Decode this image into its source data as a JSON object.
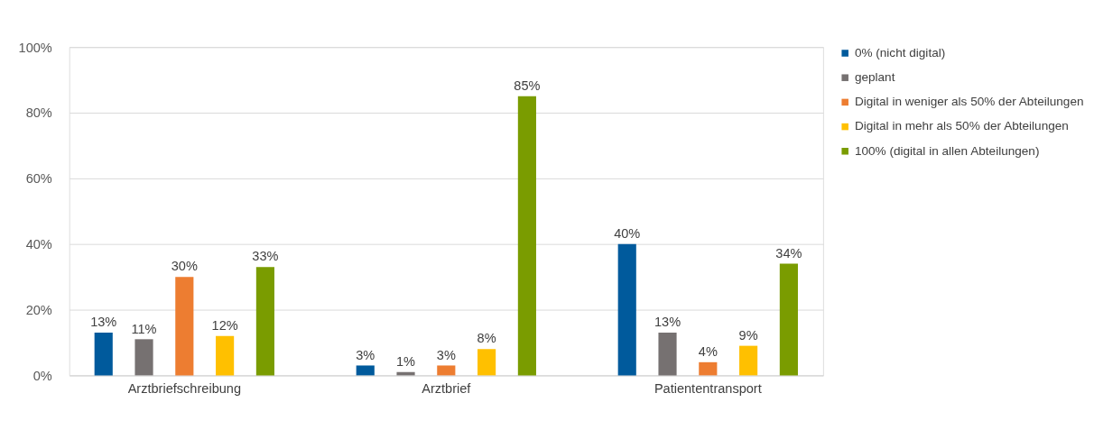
{
  "chart_data": {
    "type": "bar",
    "categories": [
      "Arztbriefschreibung",
      "Arztbrief",
      "Patiententransport"
    ],
    "series": [
      {
        "name": "0% (nicht digital)",
        "color": "#005a9c",
        "values": [
          13,
          3,
          40
        ],
        "value_labels": [
          "13%",
          "3%",
          "40%"
        ]
      },
      {
        "name": "geplant",
        "color": "#767171",
        "values": [
          11,
          1,
          13
        ],
        "value_labels": [
          "11%",
          "1%",
          "13%"
        ]
      },
      {
        "name": "Digital in weniger als 50% der Abteilungen",
        "color": "#ed7d31",
        "values": [
          30,
          3,
          4
        ],
        "value_labels": [
          "30%",
          "3%",
          "4%"
        ]
      },
      {
        "name": "Digital in mehr als 50% der Abteilungen",
        "color": "#ffc000",
        "values": [
          12,
          8,
          9
        ],
        "value_labels": [
          "12%",
          "8%",
          "9%"
        ]
      },
      {
        "name": "100% (digital in allen Abteilungen)",
        "color": "#7a9c00",
        "values": [
          33,
          85,
          34
        ],
        "value_labels": [
          "33%",
          "85%",
          "34%"
        ]
      }
    ],
    "ylim": [
      0,
      100
    ],
    "yticks": [
      {
        "value": 0,
        "label": "0%"
      },
      {
        "value": 20,
        "label": "20%"
      },
      {
        "value": 40,
        "label": "40%"
      },
      {
        "value": 60,
        "label": "60%"
      },
      {
        "value": 80,
        "label": "80%"
      },
      {
        "value": 100,
        "label": "100%"
      }
    ],
    "grid": "y",
    "legend": "right"
  }
}
